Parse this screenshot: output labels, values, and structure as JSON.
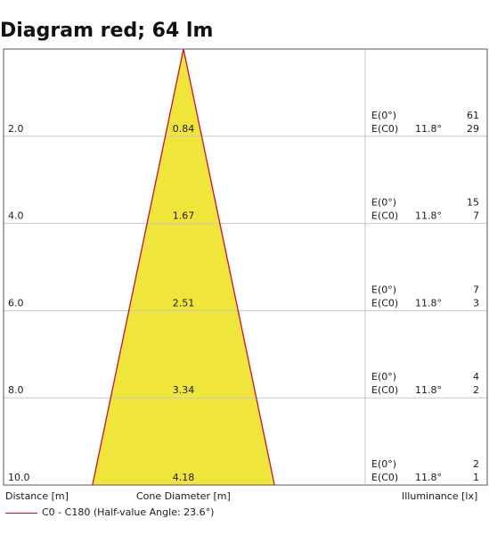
{
  "title": "Diagram red; 64 lm",
  "chart_data": {
    "type": "cone-diagram",
    "rows": [
      {
        "distance": "2.0",
        "diameter": "0.84",
        "e0_label": "E(0°)",
        "e0_value": "61",
        "ec0_label": "E(C0)",
        "angle": "11.8°",
        "ec0_value": "29"
      },
      {
        "distance": "4.0",
        "diameter": "1.67",
        "e0_label": "E(0°)",
        "e0_value": "15",
        "ec0_label": "E(C0)",
        "angle": "11.8°",
        "ec0_value": "7"
      },
      {
        "distance": "6.0",
        "diameter": "2.51",
        "e0_label": "E(0°)",
        "e0_value": "7",
        "ec0_label": "E(C0)",
        "angle": "11.8°",
        "ec0_value": "3"
      },
      {
        "distance": "8.0",
        "diameter": "3.34",
        "e0_label": "E(0°)",
        "e0_value": "4",
        "ec0_label": "E(C0)",
        "angle": "11.8°",
        "ec0_value": "2"
      },
      {
        "distance": "10.0",
        "diameter": "4.18",
        "e0_label": "E(0°)",
        "e0_value": "2",
        "ec0_label": "E(C0)",
        "angle": "11.8°",
        "ec0_value": "1"
      }
    ],
    "half_value_angle": 23.6,
    "cone_fill": "#f0e53a",
    "cone_edge": "#c8102e"
  },
  "footer": {
    "distance_label": "Distance [m]",
    "diameter_label": "Cone Diameter [m]",
    "illuminance_label": "Illuminance [lx]",
    "legend_label": "C0 - C180 (Half-value Angle: 23.6°)"
  },
  "colors": {
    "grid": "#c8c8c8",
    "frame": "#555555"
  }
}
